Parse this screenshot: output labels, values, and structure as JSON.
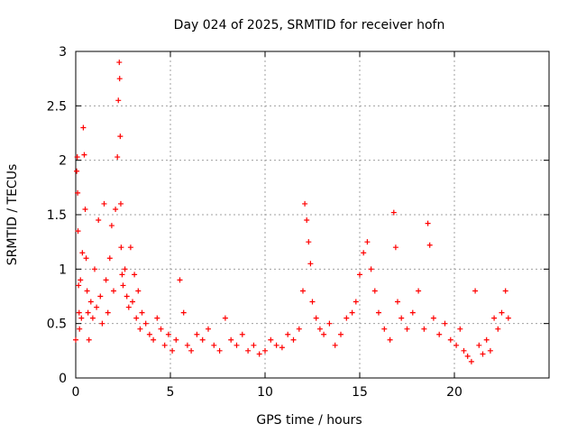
{
  "chart_data": {
    "type": "scatter",
    "title": "Day 024 of 2025, SRMTID for receiver hofn",
    "xlabel": "GPS time / hours",
    "ylabel": "SRMTID / TECUs",
    "xlim": [
      0,
      25
    ],
    "ylim": [
      0,
      3
    ],
    "xticks": [
      0,
      5,
      10,
      15,
      20
    ],
    "xtick_labels": [
      "0",
      "5",
      "10",
      "15",
      "20"
    ],
    "yticks": [
      0,
      0.5,
      1,
      1.5,
      2,
      2.5,
      3
    ],
    "ytick_labels": [
      "0",
      "0.5",
      "1",
      "1.5",
      "2",
      "2.5",
      "3"
    ],
    "grid": true,
    "marker": "+",
    "color": "#ff0000",
    "series": [
      {
        "name": "SRMTID",
        "x": [
          0.0,
          0.05,
          0.08,
          0.1,
          0.12,
          0.15,
          0.18,
          0.2,
          0.25,
          0.3,
          0.35,
          0.4,
          0.45,
          0.5,
          0.55,
          0.6,
          0.65,
          0.7,
          0.8,
          0.9,
          1.0,
          1.1,
          1.2,
          1.3,
          1.4,
          1.5,
          1.6,
          1.7,
          1.8,
          1.9,
          2.0,
          2.1,
          2.2,
          2.25,
          2.3,
          2.32,
          2.35,
          2.38,
          2.4,
          2.45,
          2.5,
          2.6,
          2.7,
          2.8,
          2.9,
          3.0,
          3.1,
          3.2,
          3.3,
          3.4,
          3.5,
          3.7,
          3.9,
          4.1,
          4.3,
          4.5,
          4.7,
          4.9,
          5.1,
          5.3,
          5.5,
          5.7,
          5.9,
          6.1,
          6.4,
          6.7,
          7.0,
          7.3,
          7.6,
          7.9,
          8.2,
          8.5,
          8.8,
          9.1,
          9.4,
          9.7,
          10.0,
          10.3,
          10.6,
          10.9,
          11.2,
          11.5,
          11.8,
          12.0,
          12.1,
          12.2,
          12.3,
          12.4,
          12.5,
          12.7,
          12.9,
          13.1,
          13.4,
          13.7,
          14.0,
          14.3,
          14.6,
          14.8,
          15.0,
          15.2,
          15.4,
          15.6,
          15.8,
          16.0,
          16.3,
          16.6,
          16.8,
          16.9,
          17.0,
          17.2,
          17.5,
          17.8,
          18.1,
          18.4,
          18.6,
          18.7,
          18.9,
          19.2,
          19.5,
          19.8,
          20.1,
          20.3,
          20.5,
          20.7,
          20.9,
          21.1,
          21.3,
          21.5,
          21.7,
          21.9,
          22.1,
          22.3,
          22.5,
          22.7,
          22.85
        ],
        "y": [
          0.35,
          1.9,
          2.03,
          1.7,
          1.35,
          0.85,
          0.6,
          0.45,
          0.9,
          0.55,
          1.15,
          2.3,
          2.05,
          1.55,
          1.1,
          0.8,
          0.6,
          0.35,
          0.7,
          0.55,
          1.0,
          0.65,
          1.45,
          0.75,
          0.5,
          1.6,
          0.9,
          0.6,
          1.1,
          1.4,
          0.8,
          1.55,
          2.03,
          2.55,
          2.9,
          2.75,
          2.22,
          1.6,
          1.2,
          0.95,
          0.85,
          1.0,
          0.75,
          0.65,
          1.2,
          0.7,
          0.95,
          0.55,
          0.8,
          0.45,
          0.6,
          0.5,
          0.4,
          0.35,
          0.55,
          0.45,
          0.3,
          0.4,
          0.25,
          0.35,
          0.9,
          0.6,
          0.3,
          0.25,
          0.4,
          0.35,
          0.45,
          0.3,
          0.25,
          0.55,
          0.35,
          0.3,
          0.4,
          0.25,
          0.3,
          0.22,
          0.25,
          0.35,
          0.3,
          0.28,
          0.4,
          0.35,
          0.45,
          0.8,
          1.6,
          1.45,
          1.25,
          1.05,
          0.7,
          0.55,
          0.45,
          0.4,
          0.5,
          0.3,
          0.4,
          0.55,
          0.6,
          0.7,
          0.95,
          1.15,
          1.25,
          1.0,
          0.8,
          0.6,
          0.45,
          0.35,
          1.52,
          1.2,
          0.7,
          0.55,
          0.45,
          0.6,
          0.8,
          0.45,
          1.42,
          1.22,
          0.55,
          0.4,
          0.5,
          0.35,
          0.3,
          0.45,
          0.25,
          0.2,
          0.15,
          0.8,
          0.3,
          0.22,
          0.35,
          0.25,
          0.55,
          0.45,
          0.6,
          0.8,
          0.55
        ]
      }
    ]
  }
}
